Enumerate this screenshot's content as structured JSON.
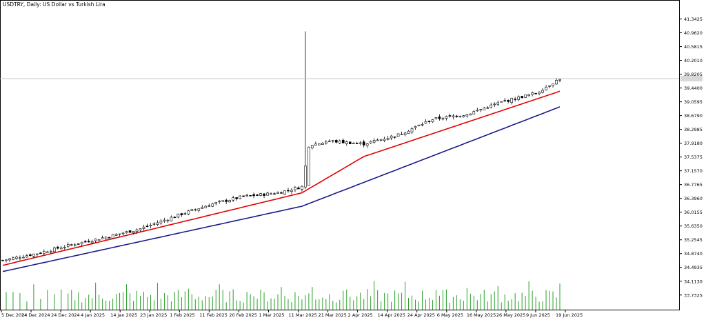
{
  "chart_data": {
    "type": "candlestick",
    "title": "USDTRY, Daily:  US Dollar vs Turkish Lira",
    "current_price": 39.7,
    "y_axis": {
      "ylim": [
        33.5,
        41.6
      ],
      "tick_labels": [
        "41.3425",
        "40.9620",
        "40.5815",
        "40.2010",
        "39.8205",
        "39.4400",
        "39.0595",
        "38.6790",
        "38.2985",
        "37.9180",
        "37.5375",
        "37.1570",
        "36.7765",
        "36.3960",
        "36.0155",
        "35.6350",
        "35.2545",
        "34.8740",
        "34.4935",
        "34.1130",
        "33.7325"
      ]
    },
    "x_axis": {
      "tick_labels": [
        "5 Dec 2024",
        "14 Dec 2024",
        "24 Dec 2024",
        "4 Jan 2025",
        "14 Jan 2025",
        "23 Jan 2025",
        "1 Feb 2025",
        "11 Feb 2025",
        "20 Feb 2025",
        "1 Mar 2025",
        "11 Mar 2025",
        "21 Mar 2025",
        "2 Apr 2025",
        "14 Apr 2025",
        "24 Apr 2025",
        "6 May 2025",
        "16 May 2025",
        "26 May 2025",
        "9 Jun 2025",
        "19 Jun 2025"
      ]
    },
    "ohlc_anchors": [
      {
        "index": 0,
        "close": 34.69
      },
      {
        "index": 10,
        "close": 34.88
      },
      {
        "index": 20,
        "close": 35.12
      },
      {
        "index": 30,
        "close": 35.33
      },
      {
        "index": 40,
        "close": 35.56
      },
      {
        "index": 50,
        "close": 35.9
      },
      {
        "index": 60,
        "close": 36.22
      },
      {
        "index": 70,
        "close": 36.45
      },
      {
        "index": 80,
        "close": 36.55
      },
      {
        "index": 87,
        "close": 36.72
      },
      {
        "index": 89,
        "close": 37.85
      },
      {
        "index": 95,
        "close": 37.98
      },
      {
        "index": 105,
        "close": 37.9
      },
      {
        "index": 115,
        "close": 38.15
      },
      {
        "index": 125,
        "close": 38.58
      },
      {
        "index": 135,
        "close": 38.72
      },
      {
        "index": 145,
        "close": 39.05
      },
      {
        "index": 155,
        "close": 39.3
      },
      {
        "index": 162,
        "close": 39.7
      }
    ],
    "spike": {
      "index": 88,
      "high": 41.0
    },
    "series": [
      {
        "name": "",
        "color": "#e00000",
        "start": 34.55,
        "anchors": [
          [
            0,
            34.55
          ],
          [
            87,
            36.55
          ],
          [
            105,
            37.55
          ],
          [
            162,
            39.35
          ]
        ]
      },
      {
        "name": "",
        "color": "#1a1a8a",
        "start": 34.38,
        "anchors": [
          [
            0,
            34.38
          ],
          [
            87,
            36.18
          ],
          [
            162,
            38.92
          ]
        ]
      }
    ],
    "volume": {
      "color": "#28a028"
    },
    "colors": {
      "bull": "#ffffff",
      "bear": "#000000",
      "wick": "#000000",
      "price_line": "#c0c0c0"
    },
    "grid": false
  }
}
